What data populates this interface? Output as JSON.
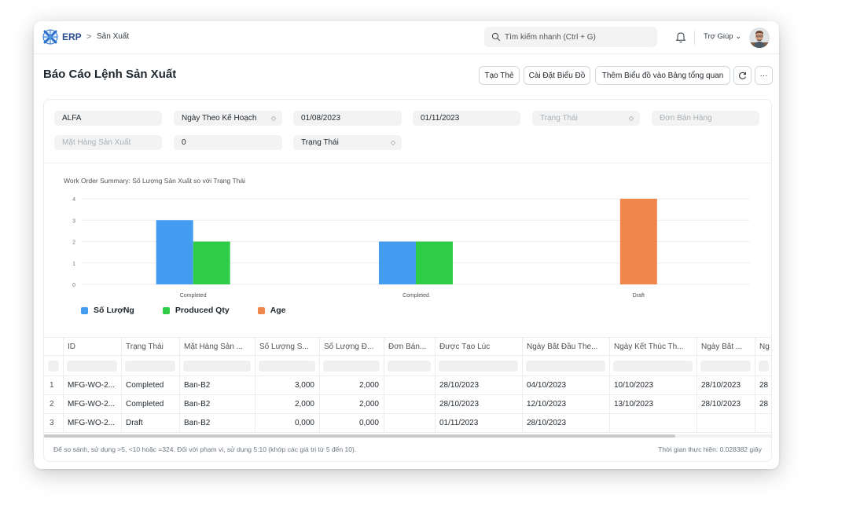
{
  "navbar": {
    "brand": "ERP",
    "breadcrumb_sep": ">",
    "breadcrumb": "Sản Xuất",
    "search_placeholder": "Tìm kiếm nhanh (Ctrl + G)",
    "help_label": "Trợ Giúp ⌄"
  },
  "page": {
    "title": "Báo Cáo Lệnh Sản Xuất"
  },
  "toolbar": {
    "create_card": "Tạo Thẻ",
    "chart_settings": "Cài Đặt Biểu Đồ",
    "add_chart_to_dashboard": "Thêm Biểu đồ vào Bảng tổng quan",
    "refresh_icon": "refresh-icon",
    "more_label": "···"
  },
  "filters": {
    "company": "ALFA",
    "based_on": "Ngày Theo Kế Hoạch",
    "from_date": "01/08/2023",
    "to_date": "01/11/2023",
    "status_placeholder": "Trạng Thái",
    "sales_order_placeholder": "Đơn Bán Hàng",
    "production_item_placeholder": "Mặt Hàng Sản Xuất",
    "age": "0",
    "charts_based_on": "Trạng Thái",
    "caret": "◇"
  },
  "chart_data": {
    "type": "bar",
    "title": "Work Order Summary: Số Lượng Sản Xuất so với Trạng Thái",
    "categories": [
      "Completed",
      "Completed",
      "Draft"
    ],
    "series": [
      {
        "name": "Số LượNg",
        "values": [
          3,
          2,
          0
        ],
        "color": "#449cf0"
      },
      {
        "name": "Produced Qty",
        "values": [
          2,
          2,
          0
        ],
        "color": "#2ecc47"
      },
      {
        "name": "Age",
        "values": [
          0,
          0,
          4
        ],
        "color": "#ef874b"
      }
    ],
    "y_ticks": [
      "0",
      "1",
      "2",
      "3",
      "4"
    ],
    "ylim": [
      0,
      4
    ],
    "grid": true,
    "legend_position": "bottom-left"
  },
  "table": {
    "columns": [
      "ID",
      "Trạng Thái",
      "Mặt Hàng Sản ...",
      "Số Lượng S...",
      "Số Lượng Đ...",
      "Đơn Bán...",
      "Được Tạo Lúc",
      "Ngày Bắt Đầu The...",
      "Ngày Kết Thúc Th...",
      "Ngày Bắt ...",
      "Ng"
    ],
    "rows": [
      [
        "1",
        "MFG-WO-2...",
        "Completed",
        "Ban-B2",
        "3,000",
        "2,000",
        "",
        "28/10/2023",
        "04/10/2023",
        "10/10/2023",
        "28/10/2023",
        "28"
      ],
      [
        "2",
        "MFG-WO-2...",
        "Completed",
        "Ban-B2",
        "2,000",
        "2,000",
        "",
        "28/10/2023",
        "12/10/2023",
        "13/10/2023",
        "28/10/2023",
        "28"
      ],
      [
        "3",
        "MFG-WO-2...",
        "Draft",
        "Ban-B2",
        "0,000",
        "0,000",
        "",
        "01/11/2023",
        "28/10/2023",
        "",
        "",
        ""
      ]
    ]
  },
  "footer": {
    "note": "Để so sánh, sử dụng >5, <10 hoặc =324. Đối với phạm vi, sử dụng 5:10 (khớp các giá trị từ 5 đến 10).",
    "execution_time": "Thời gian thực hiện: 0.028382 giây"
  }
}
